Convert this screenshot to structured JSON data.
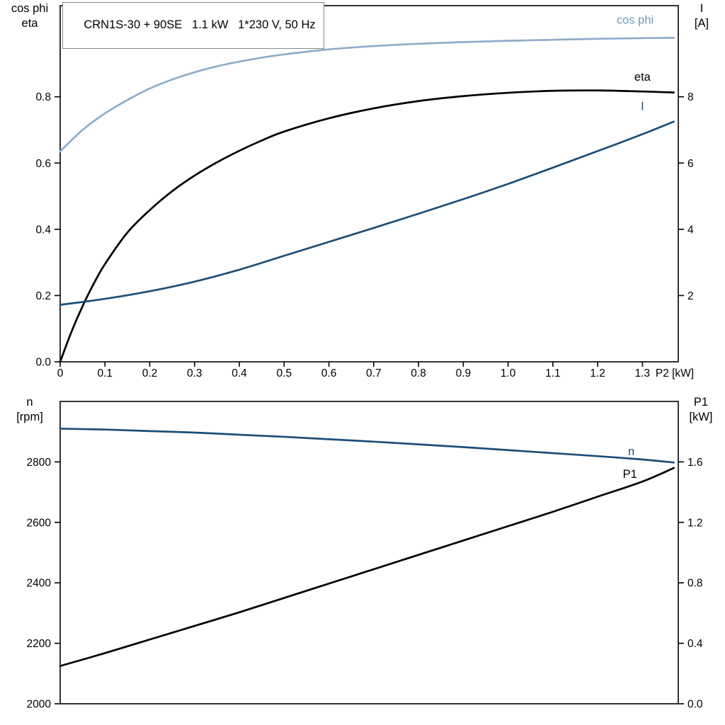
{
  "background": "#ffffff",
  "chart_data": [
    {
      "type": "line",
      "title": "CRN1S-30 + 90SE   1.1 kW   1*230 V, 50 Hz",
      "x_axis": {
        "label": "P2 [kW]",
        "min": 0,
        "max": 1.38,
        "ticks": [
          0,
          0.1,
          0.2,
          0.3,
          0.4,
          0.5,
          0.6,
          0.7,
          0.8,
          0.9,
          1.0,
          1.1,
          1.2,
          1.3
        ],
        "tick_labels": [
          "0",
          "0.1",
          "0.2",
          "0.3",
          "0.4",
          "0.5",
          "0.6",
          "0.7",
          "0.8",
          "0.9",
          "1.0",
          "1.1",
          "1.2",
          "1.3"
        ],
        "show_labels": true,
        "show_ticks": true
      },
      "y_left": {
        "label_lines": [
          "cos phi",
          "eta"
        ],
        "min": 0,
        "max": 1.075,
        "ticks": [
          0,
          0.2,
          0.4,
          0.6,
          0.8
        ],
        "tick_labels": [
          "0.0",
          "0.2",
          "0.4",
          "0.6",
          "0.8"
        ]
      },
      "y_right": {
        "label_lines": [
          "I",
          "[A]"
        ],
        "min": 0,
        "max": 10.75,
        "ticks": [
          2,
          4,
          6,
          8
        ],
        "tick_labels": [
          "2",
          "4",
          "6",
          "8"
        ]
      },
      "grid": false,
      "legend_position": "on-curve",
      "series": [
        {
          "name": "cos phi",
          "axis": "left",
          "color": "#8FACCB",
          "width": 2.7,
          "x": [
            0,
            0.05,
            0.1,
            0.15,
            0.2,
            0.25,
            0.3,
            0.35,
            0.4,
            0.45,
            0.5,
            0.6,
            0.7,
            0.8,
            0.9,
            1.0,
            1.1,
            1.2,
            1.3,
            1.37
          ],
          "y": [
            0.635,
            0.7,
            0.75,
            0.79,
            0.825,
            0.852,
            0.874,
            0.892,
            0.906,
            0.918,
            0.928,
            0.943,
            0.953,
            0.96,
            0.965,
            0.969,
            0.972,
            0.975,
            0.977,
            0.978
          ],
          "label": {
            "text": "cos phi",
            "x": 1.325,
            "y": 1.02,
            "anchor": "end",
            "color": "#6D9BC3"
          }
        },
        {
          "name": "eta",
          "axis": "left",
          "color": "#000000",
          "width": 2.7,
          "x": [
            0,
            0.025,
            0.05,
            0.075,
            0.1,
            0.15,
            0.2,
            0.25,
            0.3,
            0.35,
            0.4,
            0.45,
            0.5,
            0.6,
            0.7,
            0.8,
            0.9,
            1.0,
            1.1,
            1.2,
            1.3,
            1.37
          ],
          "y": [
            0.0,
            0.09,
            0.168,
            0.236,
            0.295,
            0.39,
            0.458,
            0.515,
            0.562,
            0.602,
            0.637,
            0.668,
            0.695,
            0.735,
            0.765,
            0.787,
            0.802,
            0.812,
            0.818,
            0.819,
            0.816,
            0.813
          ],
          "label": {
            "text": "eta",
            "x": 1.3,
            "y": 0.848,
            "anchor": "middle",
            "color": "#000000"
          }
        },
        {
          "name": "I",
          "axis": "right",
          "color": "#1C4E78",
          "width": 2.7,
          "x": [
            0,
            0.1,
            0.2,
            0.3,
            0.4,
            0.5,
            0.6,
            0.7,
            0.8,
            0.9,
            1.0,
            1.1,
            1.2,
            1.3,
            1.37
          ],
          "y": [
            1.72,
            1.9,
            2.13,
            2.42,
            2.78,
            3.2,
            3.62,
            4.04,
            4.47,
            4.91,
            5.37,
            5.86,
            6.36,
            6.87,
            7.25
          ],
          "label": {
            "text": "I",
            "x": 1.3,
            "y": 7.6,
            "anchor": "middle",
            "color": "#1C4E78"
          }
        }
      ]
    },
    {
      "type": "line",
      "title": "",
      "x_axis": {
        "label": "",
        "min": 0,
        "max": 1.38,
        "ticks": [],
        "tick_labels": [],
        "show_labels": false,
        "show_ticks": false
      },
      "y_left": {
        "label_lines": [
          "n",
          "[rpm]"
        ],
        "min": 2000,
        "max": 3000,
        "ticks": [
          2000,
          2200,
          2400,
          2600,
          2800
        ],
        "tick_labels": [
          "2000",
          "2200",
          "2400",
          "2600",
          "2800"
        ]
      },
      "y_right": {
        "label_lines": [
          "P1",
          "[kW]"
        ],
        "min": 0,
        "max": 2.0,
        "ticks": [
          0,
          0.4,
          0.8,
          1.2,
          1.6
        ],
        "tick_labels": [
          "0.0",
          "0.4",
          "0.8",
          "1.2",
          "1.6"
        ]
      },
      "grid": false,
      "legend_position": "on-curve",
      "series": [
        {
          "name": "n",
          "axis": "left",
          "color": "#1C4E78",
          "width": 2.7,
          "x": [
            0,
            0.1,
            0.2,
            0.3,
            0.4,
            0.5,
            0.6,
            0.7,
            0.8,
            0.9,
            1.0,
            1.1,
            1.2,
            1.3,
            1.37
          ],
          "y": [
            2910,
            2907,
            2902,
            2897,
            2890,
            2883,
            2875,
            2867,
            2858,
            2849,
            2839,
            2829,
            2819,
            2808,
            2798
          ],
          "label": {
            "text": "n",
            "x": 1.275,
            "y": 2822,
            "anchor": "middle",
            "color": "#1C4E78"
          }
        },
        {
          "name": "P1",
          "axis": "right",
          "color": "#000000",
          "width": 2.7,
          "x": [
            0,
            0.1,
            0.2,
            0.3,
            0.4,
            0.5,
            0.6,
            0.7,
            0.8,
            0.9,
            1.0,
            1.1,
            1.2,
            1.3,
            1.37
          ],
          "y": [
            0.25,
            0.335,
            0.425,
            0.515,
            0.605,
            0.7,
            0.795,
            0.89,
            0.985,
            1.08,
            1.175,
            1.27,
            1.37,
            1.47,
            1.56
          ],
          "label": {
            "text": "P1",
            "x": 1.272,
            "y": 1.495,
            "anchor": "middle",
            "color": "#000000"
          }
        }
      ]
    }
  ]
}
